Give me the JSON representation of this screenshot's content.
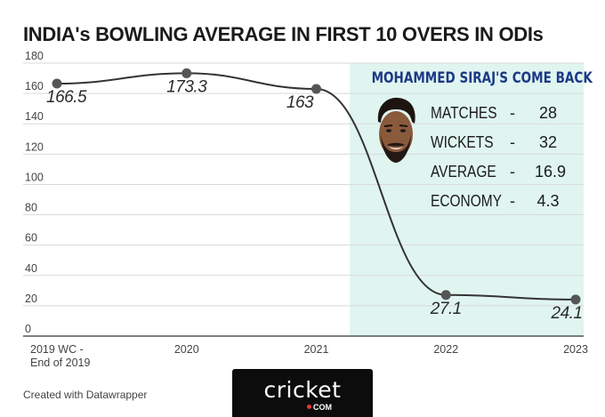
{
  "title": "INDIA's BOWLING AVERAGE IN FIRST 10 OVERS IN ODIs",
  "footer_note": "Created with Datawrapper",
  "logo": {
    "text": "cricket",
    "sub": "COM"
  },
  "panel": {
    "title": "MOHAMMED SIRAJ'S COME BACK",
    "highlight_from": "2021",
    "highlight_to": "2023",
    "background": "#e0f5f0",
    "stats": [
      {
        "label": "MATCHES",
        "dash": "-",
        "value": "28"
      },
      {
        "label": "WICKETS",
        "dash": "-",
        "value": "32"
      },
      {
        "label": "AVERAGE",
        "dash": "-",
        "value": "16.9"
      },
      {
        "label": "ECONOMY",
        "dash": "-",
        "value": "4.3"
      }
    ]
  },
  "chart_data": {
    "type": "line",
    "categories": [
      "2019 WC - End of 2019",
      "2020",
      "2021",
      "2022",
      "2023"
    ],
    "category_lines": [
      [
        "2019 WC -",
        "End of 2019"
      ],
      [
        "2020"
      ],
      [
        "2021"
      ],
      [
        "2022"
      ],
      [
        "2023"
      ]
    ],
    "values": [
      166.5,
      173.3,
      163,
      27.1,
      24.1
    ],
    "data_labels": [
      "166.5",
      "173.3",
      "163",
      "27.1",
      "24.1"
    ],
    "yticks": [
      0,
      20,
      40,
      60,
      80,
      100,
      120,
      140,
      160,
      180
    ],
    "ylim": [
      0,
      180
    ],
    "grid": true,
    "line_color": "#333333"
  }
}
